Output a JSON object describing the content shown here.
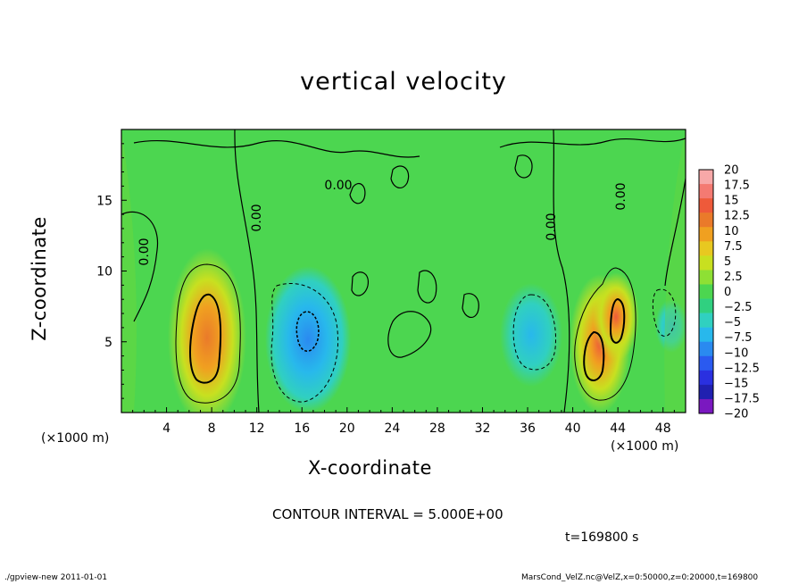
{
  "chart_data": {
    "type": "heatmap",
    "title": "vertical velocity",
    "xlabel": "X-coordinate",
    "ylabel": "Z-coordinate",
    "x_unit_label": "(×1000 m)",
    "x_ticks": [
      4,
      8,
      12,
      16,
      20,
      24,
      28,
      32,
      36,
      40,
      44,
      48
    ],
    "y_ticks": [
      5,
      10,
      15
    ],
    "xlim": [
      0,
      50
    ],
    "ylim": [
      0,
      20
    ],
    "colorbar_levels": [
      "20",
      "17.5",
      "15",
      "12.5",
      "10",
      "7.5",
      "5",
      "2.5",
      "0",
      "−2.5",
      "−5",
      "−7.5",
      "−10",
      "−12.5",
      "−15",
      "−17.5",
      "−20"
    ],
    "colorbar_colors": [
      "#f7a8a8",
      "#f47a72",
      "#ee5a3a",
      "#ea7a2a",
      "#f0a020",
      "#e8c820",
      "#c8e020",
      "#8ee034",
      "#4cd650",
      "#30d080",
      "#30d0c0",
      "#28b8ec",
      "#2a8af0",
      "#2a5af0",
      "#2a30e0",
      "#2020b0",
      "#7a18c0"
    ],
    "contour_labels": [
      "0.00",
      "0.00",
      "0.00",
      "0.00",
      "0.00"
    ],
    "contour_interval": "CONTOUR INTERVAL = 5.000E+00",
    "features": [
      {
        "kind": "updraft",
        "x": 7.5,
        "z": 6.0,
        "peak": 12.5
      },
      {
        "kind": "downdraft",
        "x": 16.5,
        "z": 6.5,
        "peak": -10
      },
      {
        "kind": "downdraft",
        "x": 35.5,
        "z": 6.0,
        "peak": -7.5
      },
      {
        "kind": "updraft",
        "x": 42.0,
        "z": 4.5,
        "peak": 12.5
      },
      {
        "kind": "updraft",
        "x": 44.0,
        "z": 7.0,
        "peak": 12.5
      },
      {
        "kind": "downdraft",
        "x": 48.0,
        "z": 6.5,
        "peak": -7.5
      }
    ]
  },
  "timestamp": "t=169800 s",
  "footer": {
    "left": "./gpview-new   2011-01-01",
    "right": "MarsCond_VelZ.nc@VelZ,x=0:50000,z=0:20000,t=169800"
  }
}
